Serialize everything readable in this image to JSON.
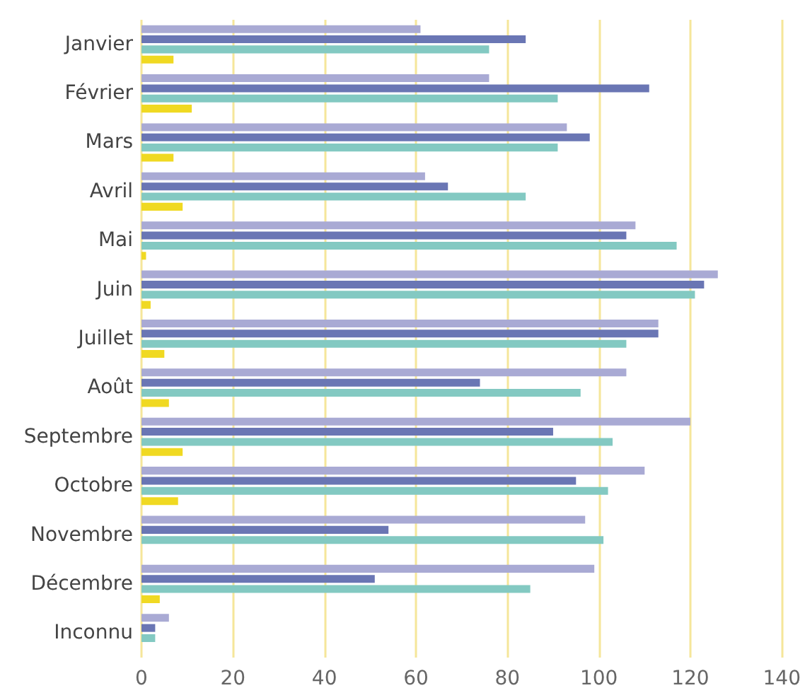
{
  "chart_data": {
    "type": "bar",
    "orientation": "horizontal",
    "categories": [
      "Janvier",
      "Février",
      "Mars",
      "Avril",
      "Mai",
      "Juin",
      "Juillet",
      "Août",
      "Septembre",
      "Octobre",
      "Novembre",
      "Décembre",
      "Inconnu"
    ],
    "series": [
      {
        "color": "#a9aad4",
        "values": [
          61,
          76,
          93,
          62,
          108,
          126,
          113,
          106,
          120,
          110,
          97,
          99,
          6
        ]
      },
      {
        "color": "#6a76b4",
        "values": [
          84,
          111,
          98,
          67,
          106,
          123,
          113,
          74,
          90,
          95,
          54,
          51,
          3
        ]
      },
      {
        "color": "#83c9c2",
        "values": [
          76,
          91,
          91,
          84,
          117,
          121,
          106,
          96,
          103,
          102,
          101,
          85,
          3
        ]
      },
      {
        "color": "#f0d922",
        "values": [
          7,
          11,
          7,
          9,
          1,
          2,
          5,
          6,
          9,
          8,
          0,
          4,
          0
        ]
      }
    ],
    "xlim": [
      0,
      140
    ],
    "xticks": [
      0,
      20,
      40,
      60,
      80,
      100,
      120,
      140
    ],
    "grid": "x"
  }
}
